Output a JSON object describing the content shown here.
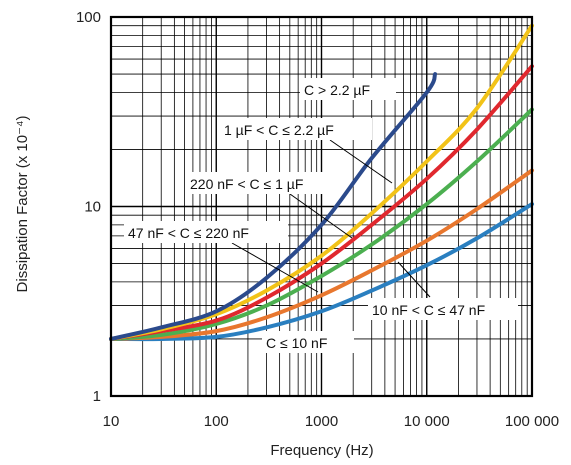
{
  "chart_data": {
    "type": "line",
    "xlabel": "Frequency (Hz)",
    "ylabel": "Dissipation Factor (x 10⁻⁴)",
    "xscale": "log",
    "yscale": "log",
    "xlim": [
      10,
      100000
    ],
    "ylim": [
      1,
      100
    ],
    "grid": true,
    "x_ticks": [
      {
        "value": 10,
        "label": "10"
      },
      {
        "value": 100,
        "label": "100"
      },
      {
        "value": 1000,
        "label": "1000"
      },
      {
        "value": 10000,
        "label": "10 000"
      },
      {
        "value": 100000,
        "label": "100 000"
      }
    ],
    "y_ticks": [
      {
        "value": 1,
        "label": "1"
      },
      {
        "value": 10,
        "label": "10"
      },
      {
        "value": 100,
        "label": "100"
      }
    ],
    "series": [
      {
        "name": "C ≤ 10 nF",
        "color": "#2a7fc0",
        "x": [
          10,
          30,
          100,
          300,
          1000,
          3000,
          10000,
          30000,
          100000
        ],
        "y": [
          2.0,
          2.0,
          2.05,
          2.3,
          2.8,
          3.6,
          4.9,
          6.8,
          10.3
        ]
      },
      {
        "name": "10 nF < C ≤ 47 nF",
        "color": "#e8772e",
        "x": [
          10,
          30,
          100,
          300,
          1000,
          3000,
          10000,
          30000,
          100000
        ],
        "y": [
          2.0,
          2.05,
          2.2,
          2.6,
          3.4,
          4.6,
          6.6,
          9.7,
          15.5
        ]
      },
      {
        "name": "220 nF < C ≤ 1 µF",
        "color": "#4caf50",
        "x": [
          10,
          30,
          100,
          300,
          1000,
          3000,
          10000,
          30000,
          100000
        ],
        "y": [
          2.0,
          2.1,
          2.4,
          3.0,
          4.3,
          6.3,
          10.3,
          17.3,
          32.5
        ]
      },
      {
        "name": "1 µF < C ≤ 2.2 µF",
        "color": "#e0282e",
        "x": [
          10,
          30,
          100,
          300,
          1000,
          3000,
          10000,
          30000,
          100000
        ],
        "y": [
          2.0,
          2.2,
          2.5,
          3.3,
          5.0,
          8.0,
          14.0,
          25.5,
          55.0
        ]
      },
      {
        "name": "47 nF < C ≤ 220 nF",
        "color": "#f2c318",
        "x": [
          10,
          30,
          100,
          300,
          1000,
          3000,
          10000,
          30000,
          100000
        ],
        "y": [
          2.0,
          2.25,
          2.7,
          3.6,
          5.5,
          9.2,
          17.3,
          33.0,
          90.0
        ]
      },
      {
        "name": "C > 2.2 µF",
        "color": "#2b4a8c",
        "x": [
          10,
          30,
          100,
          300,
          1000,
          3000,
          10000,
          12000
        ],
        "y": [
          2.0,
          2.3,
          2.8,
          4.2,
          8.0,
          18.0,
          40.0,
          50.0
        ]
      }
    ],
    "annotations": [
      {
        "text": "C > 2.2 µF"
      },
      {
        "text": "1 µF < C ≤ 2.2 µF"
      },
      {
        "text": "220 nF < C ≤ 1 µF"
      },
      {
        "text": "47 nF < C ≤ 220 nF"
      },
      {
        "text": "10 nF < C ≤ 47 nF"
      },
      {
        "text": "C ≤ 10 nF"
      }
    ]
  }
}
